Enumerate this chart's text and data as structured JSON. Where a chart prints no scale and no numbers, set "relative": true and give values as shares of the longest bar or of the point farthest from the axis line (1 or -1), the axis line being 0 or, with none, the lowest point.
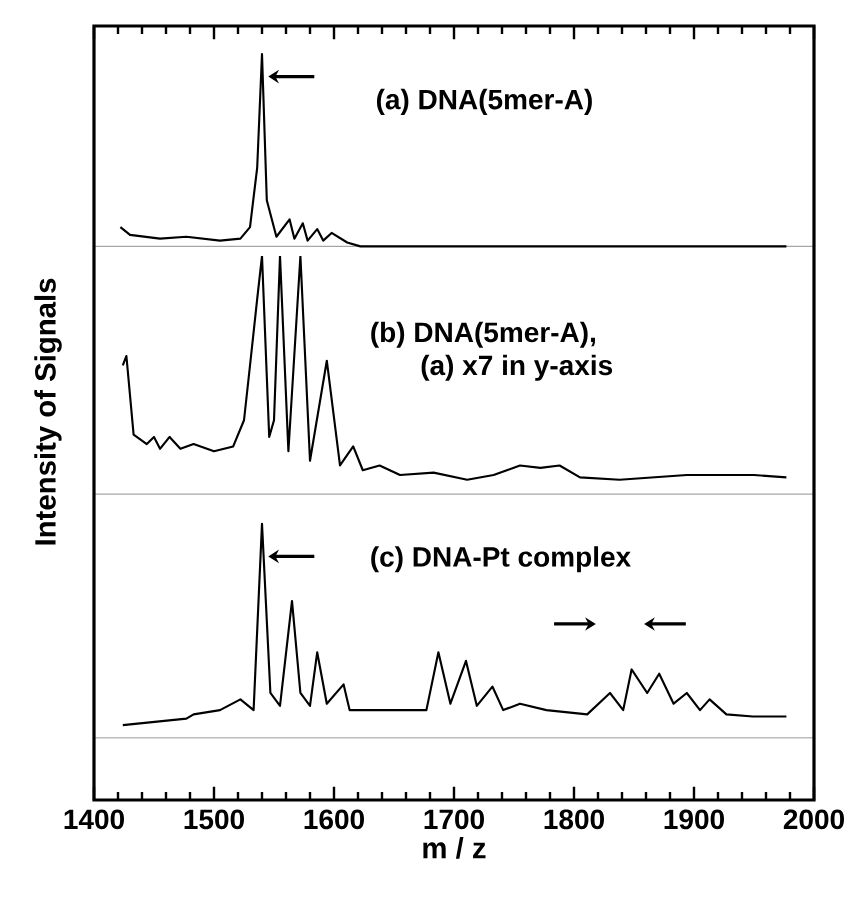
{
  "chart_data": [
    {
      "type": "line",
      "title": "(a) DNA(5mer-A)",
      "relative": true,
      "color": "#000000",
      "xlim": [
        1400,
        2000
      ],
      "xticks": [
        {
          "value": 1400,
          "label": null
        },
        {
          "value": 1500,
          "label": null
        },
        {
          "value": 1600,
          "label": null
        },
        {
          "value": 1700,
          "label": null
        },
        {
          "value": 1800,
          "label": null
        },
        {
          "value": 1900,
          "label": null
        },
        {
          "value": 2000,
          "label": null
        }
      ],
      "tick_labels": false,
      "x": [
        1422,
        1430,
        1455,
        1477,
        1505,
        1522,
        1530,
        1536,
        1540,
        1544,
        1552,
        1563,
        1567,
        1574,
        1578,
        1586,
        1591,
        1598,
        1611,
        1622,
        1977
      ],
      "values": [
        0.1,
        0.06,
        0.04,
        0.05,
        0.03,
        0.04,
        0.1,
        0.41,
        1,
        0.24,
        0.05,
        0.14,
        0.04,
        0.12,
        0.03,
        0.09,
        0.03,
        0.07,
        0.02,
        0,
        0
      ]
    },
    {
      "type": "line",
      "title": "(b) DNA(5mer-A),",
      "subtitle": "(a) x7 in y-axis",
      "ylabel": "Intensity of Signals",
      "relative": true,
      "color": "#000000",
      "xlim": [
        1400,
        2000
      ],
      "tick_labels": false,
      "x": [
        1424,
        1427,
        1433,
        1444,
        1450,
        1455,
        1463,
        1472,
        1483,
        1500,
        1516,
        1525,
        1530,
        1536,
        1540,
        1546,
        1550,
        1555,
        1562,
        1572,
        1580,
        1594,
        1605,
        1616,
        1624,
        1638,
        1655,
        1683,
        1711,
        1733,
        1755,
        1772,
        1788,
        1805,
        1838,
        1894,
        1950,
        1977
      ],
      "values": [
        0.54,
        0.58,
        0.25,
        0.21,
        0.24,
        0.19,
        0.24,
        0.19,
        0.21,
        0.18,
        0.2,
        0.31,
        0.54,
        0.82,
        1,
        0.24,
        0.31,
        1,
        0.18,
        1,
        0.14,
        0.56,
        0.12,
        0.2,
        0.1,
        0.12,
        0.08,
        0.09,
        0.06,
        0.08,
        0.12,
        0.11,
        0.12,
        0.07,
        0.06,
        0.08,
        0.08,
        0.07
      ]
    },
    {
      "type": "line",
      "title": "(c) DNA-Pt complex",
      "xlabel": "m / z",
      "relative": true,
      "color": "#000000",
      "xlim": [
        1400,
        2000
      ],
      "xticks": [
        1400,
        1500,
        1600,
        1700,
        1800,
        1900,
        2000
      ],
      "tick_labels": "x",
      "x": [
        1424,
        1477,
        1483,
        1505,
        1522,
        1533,
        1540,
        1547,
        1555,
        1565,
        1572,
        1580,
        1586,
        1594,
        1608,
        1613,
        1644,
        1677,
        1687,
        1697,
        1710,
        1719,
        1732,
        1741,
        1755,
        1777,
        1811,
        1830,
        1841,
        1848,
        1861,
        1871,
        1883,
        1894,
        1905,
        1913,
        1927,
        1949,
        1977
      ],
      "values": [
        0.06,
        0.09,
        0.11,
        0.13,
        0.18,
        0.13,
        1,
        0.21,
        0.15,
        0.64,
        0.21,
        0.15,
        0.4,
        0.16,
        0.25,
        0.13,
        0.13,
        0.13,
        0.4,
        0.16,
        0.36,
        0.15,
        0.24,
        0.13,
        0.16,
        0.13,
        0.11,
        0.21,
        0.13,
        0.32,
        0.21,
        0.3,
        0.16,
        0.21,
        0.13,
        0.18,
        0.11,
        0.1,
        0.1
      ]
    }
  ]
}
